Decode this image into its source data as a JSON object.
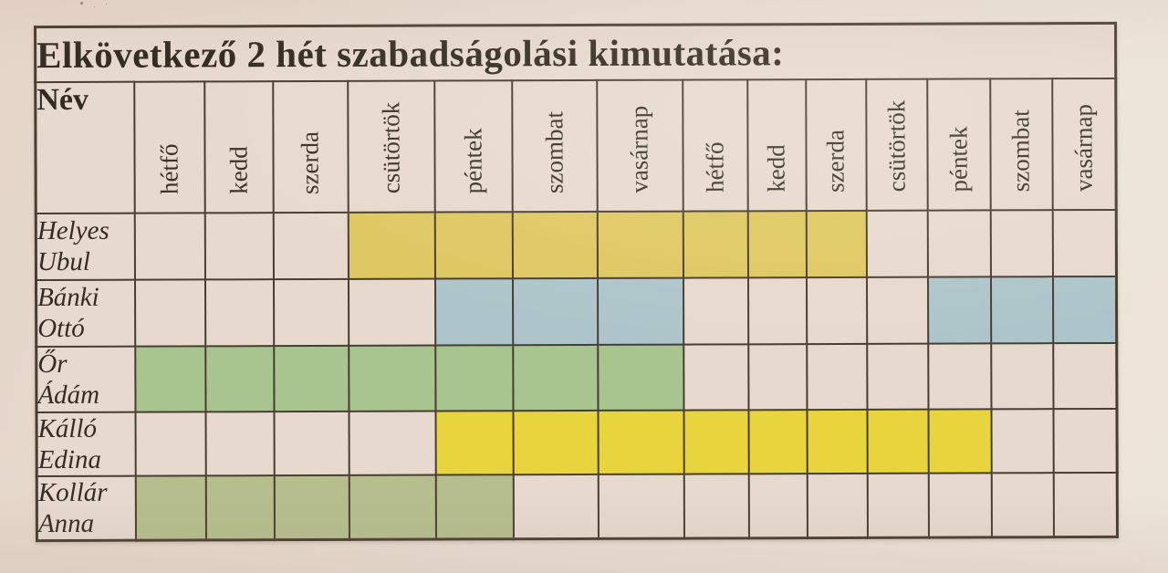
{
  "document": {
    "title": "Elkövetkező 2 hét szabadságolási kimutatása:",
    "name_header": "Név",
    "day_headers": [
      "hétfő",
      "kedd",
      "szerda",
      "csütörtök",
      "péntek",
      "szombat",
      "vasárnap",
      "hétfő",
      "kedd",
      "szerda",
      "csütörtök",
      "péntek",
      "szombat",
      "vasárnap"
    ],
    "rows": [
      {
        "name": "Helyes Ubul",
        "name_lines": [
          "Helyes",
          "Ubul"
        ],
        "fill": "#dfc862",
        "vacation_days": [
          0,
          0,
          0,
          1,
          1,
          1,
          1,
          1,
          1,
          1,
          0,
          0,
          0,
          0
        ]
      },
      {
        "name": "Bánki Ottó",
        "name_lines": [
          "Bánki",
          "Ottó"
        ],
        "fill": "#adc5ca",
        "vacation_days": [
          0,
          0,
          0,
          0,
          1,
          1,
          1,
          0,
          0,
          0,
          0,
          1,
          1,
          1
        ]
      },
      {
        "name": "Őr Ádám",
        "name_lines": [
          "Őr",
          "Ádám"
        ],
        "fill": "#a8c48f",
        "vacation_days": [
          1,
          1,
          1,
          1,
          1,
          1,
          1,
          0,
          0,
          0,
          0,
          0,
          0,
          0
        ]
      },
      {
        "name": "Kálló Edina",
        "name_lines": [
          "Kálló",
          "Edina"
        ],
        "fill": "#e8d43c",
        "vacation_days": [
          0,
          0,
          0,
          0,
          1,
          1,
          1,
          1,
          1,
          1,
          1,
          1,
          0,
          0
        ]
      },
      {
        "name": "Kollár Anna",
        "name_lines": [
          "Kollár",
          "Anna"
        ],
        "fill": "#b5be8c",
        "vacation_days": [
          1,
          1,
          1,
          1,
          1,
          0,
          0,
          0,
          0,
          0,
          0,
          0,
          0,
          0
        ]
      }
    ],
    "colors": {
      "paper": "#e9dcd1",
      "blank_cell": "#e7d9ce",
      "grid_line": "#473d30",
      "text": "#332c22"
    }
  }
}
